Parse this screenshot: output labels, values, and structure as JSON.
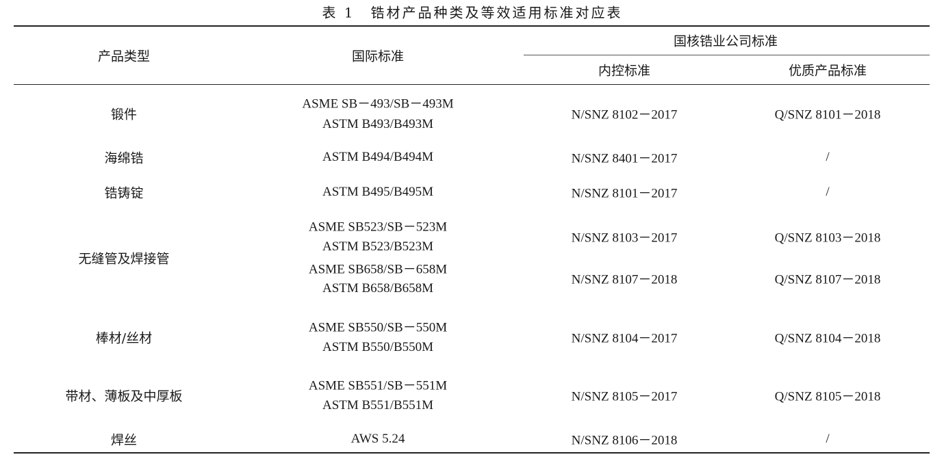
{
  "title": "表 1　锆材产品种类及等效适用标准对应表",
  "headers": {
    "product_type": "产品类型",
    "international": "国际标准",
    "company_group": "国核锆业公司标准",
    "internal": "内控标准",
    "premium": "优质产品标准"
  },
  "rows": [
    {
      "product": "锻件",
      "intl": [
        "ASME SB－493/SB－493M",
        "ASTM B493/B493M"
      ],
      "internal": [
        "N/SNZ 8102－2017"
      ],
      "premium": [
        "Q/SNZ 8101－2018"
      ]
    },
    {
      "product": "海绵锆",
      "intl": [
        "ASTM B494/B494M"
      ],
      "internal": [
        "N/SNZ 8401－2017"
      ],
      "premium": [
        "/"
      ]
    },
    {
      "product": "锆铸锭",
      "intl": [
        "ASTM B495/B495M"
      ],
      "internal": [
        "N/SNZ 8101－2017"
      ],
      "premium": [
        "/"
      ]
    },
    {
      "product": "无缝管及焊接管",
      "intl": [
        "ASME SB523/SB－523M",
        "ASTM B523/B523M",
        "ASME SB658/SB－658M",
        "ASTM B658/B658M"
      ],
      "internal": [
        "N/SNZ 8103－2017",
        "N/SNZ 8107－2018"
      ],
      "premium": [
        "Q/SNZ 8103－2018",
        "Q/SNZ 8107－2018"
      ]
    },
    {
      "product": "棒材/丝材",
      "intl": [
        "ASME SB550/SB－550M",
        "ASTM B550/B550M"
      ],
      "internal": [
        "N/SNZ 8104－2017"
      ],
      "premium": [
        "Q/SNZ 8104－2018"
      ]
    },
    {
      "product": "带材、薄板及中厚板",
      "intl": [
        "ASME SB551/SB－551M",
        "ASTM B551/B551M"
      ],
      "internal": [
        "N/SNZ 8105－2017"
      ],
      "premium": [
        "Q/SNZ 8105－2018"
      ]
    },
    {
      "product": "焊丝",
      "intl": [
        "AWS 5.24"
      ],
      "internal": [
        "N/SNZ 8106－2018"
      ],
      "premium": [
        "/"
      ]
    }
  ]
}
